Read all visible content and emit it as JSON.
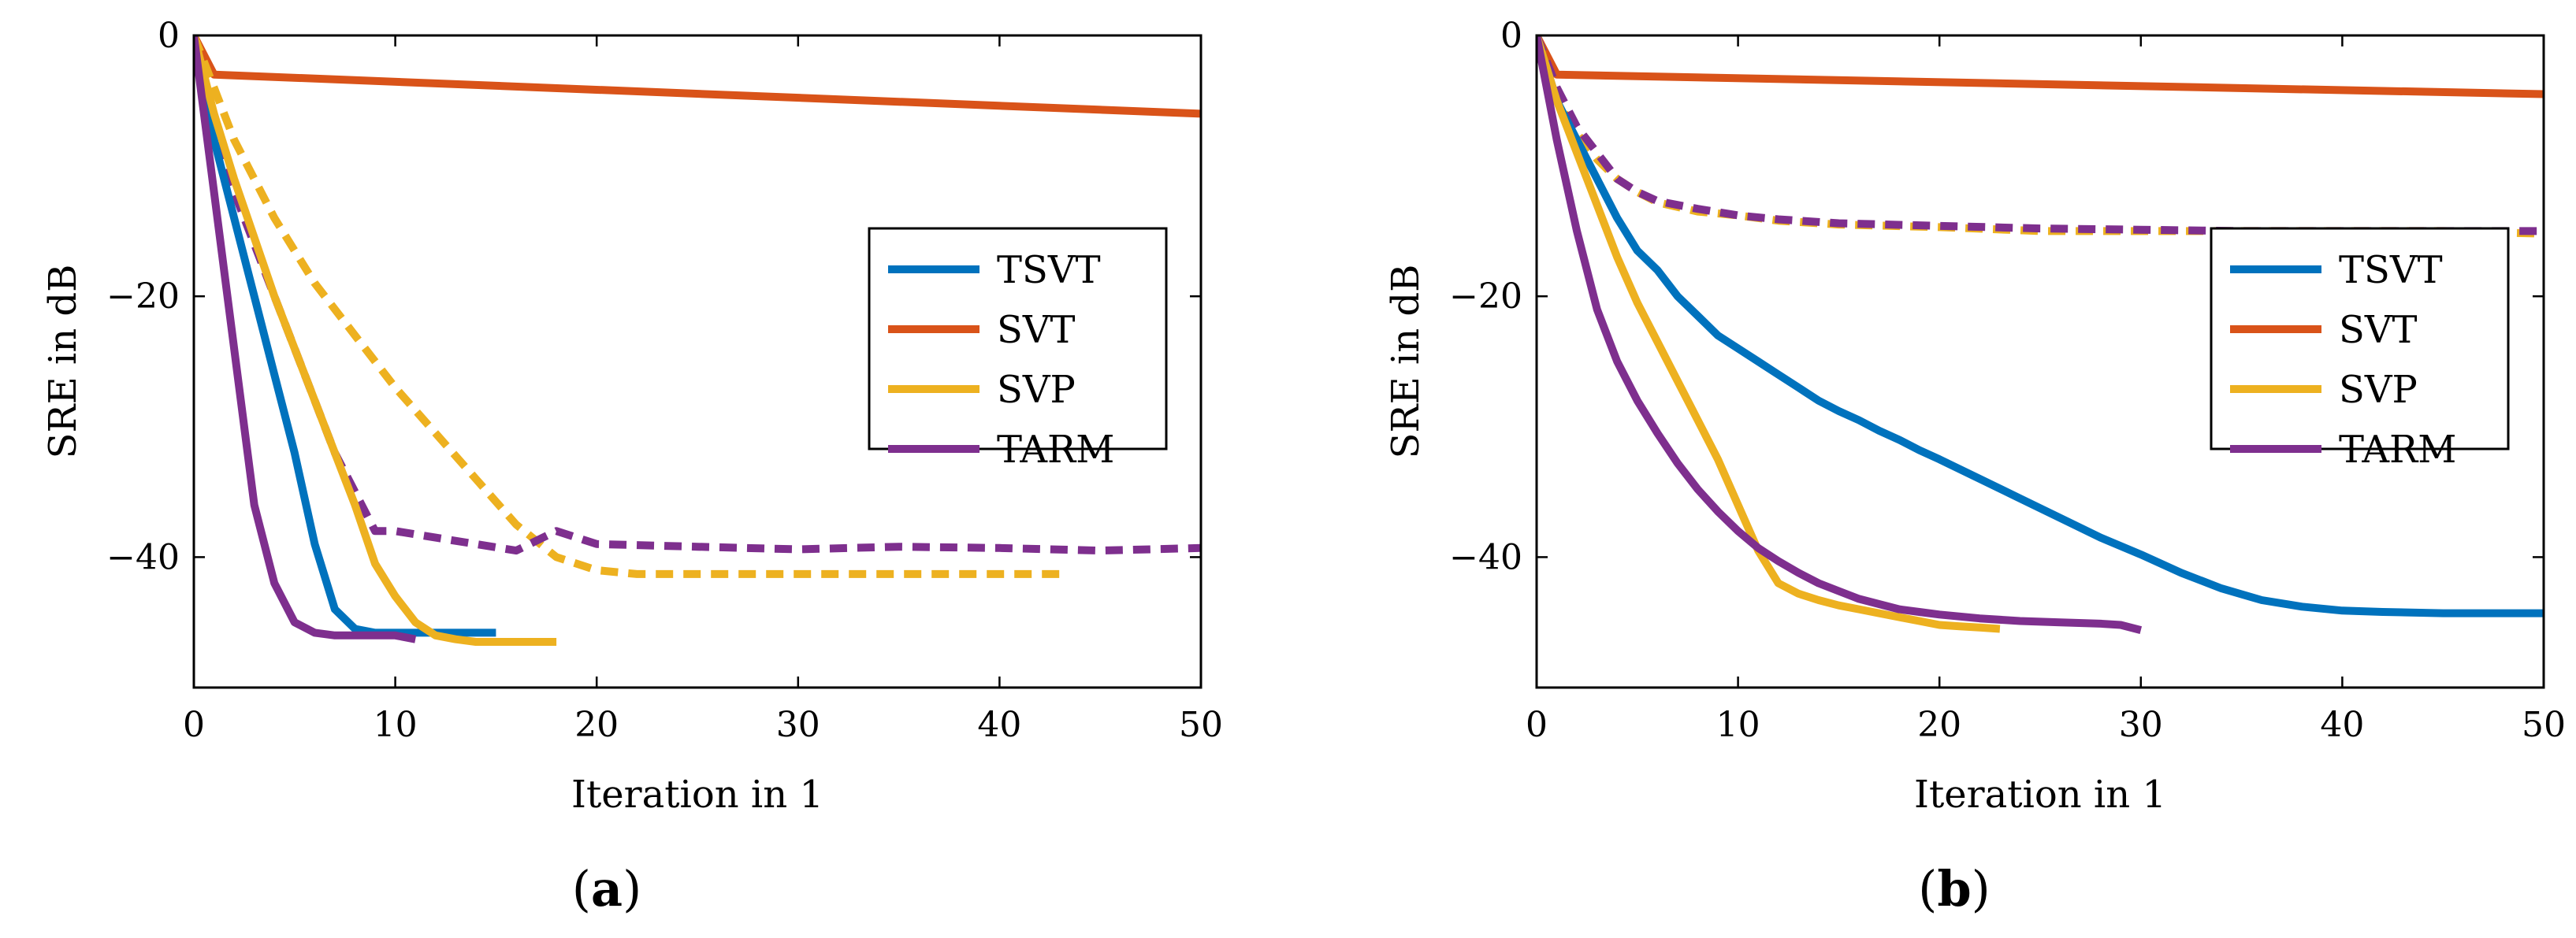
{
  "chart_data": [
    {
      "type": "line",
      "panel_label": "a",
      "xlabel": "Iteration in 1",
      "ylabel": "SRE in dB",
      "xlim": [
        0,
        50
      ],
      "ylim": [
        -50,
        0
      ],
      "xticks": [
        0,
        10,
        20,
        30,
        40,
        50
      ],
      "yticks": [
        0,
        -20,
        -40
      ],
      "xtick_labels": [
        "0",
        "10",
        "20",
        "30",
        "40",
        "50"
      ],
      "ytick_labels": [
        "0",
        "−20",
        "−40"
      ],
      "legend_position": "center-right",
      "legend": [
        {
          "name": "TSVT",
          "color": "#0072BD"
        },
        {
          "name": "SVT",
          "color": "#D95319"
        },
        {
          "name": "SVP",
          "color": "#EDB120"
        },
        {
          "name": "TARM",
          "color": "#7E2F8E"
        }
      ],
      "series": [
        {
          "name": "SVT",
          "color": "#D95319",
          "dashed": false,
          "x": [
            0,
            1,
            50
          ],
          "y": [
            0,
            -3,
            -6
          ]
        },
        {
          "name": "SVP",
          "color": "#EDB120",
          "dashed": true,
          "x": [
            0,
            2,
            4,
            6,
            8,
            10,
            12,
            14,
            16,
            18,
            20,
            22,
            25,
            30,
            35,
            40,
            43
          ],
          "y": [
            0,
            -8,
            -14,
            -19,
            -23,
            -27,
            -30.5,
            -34,
            -37.5,
            -40,
            -41,
            -41.3,
            -41.3,
            -41.3,
            -41.3,
            -41.3,
            -41.3
          ]
        },
        {
          "name": "TARM",
          "color": "#7E2F8E",
          "dashed": true,
          "x": [
            0,
            1,
            2,
            3,
            4,
            5,
            6,
            7,
            8,
            9,
            10,
            12,
            14,
            16,
            18,
            20,
            25,
            30,
            35,
            40,
            45,
            50
          ],
          "y": [
            0,
            -8,
            -12,
            -16,
            -20,
            -24,
            -28,
            -32,
            -35,
            -38,
            -38,
            -38.5,
            -39,
            -39.5,
            -38,
            -39,
            -39.2,
            -39.4,
            -39.2,
            -39.3,
            -39.5,
            -39.3
          ]
        },
        {
          "name": "TSVT",
          "color": "#0072BD",
          "dashed": false,
          "x": [
            0,
            1,
            2,
            3,
            4,
            5,
            6,
            7,
            8,
            9,
            10,
            11,
            12,
            13,
            14,
            15
          ],
          "y": [
            0,
            -8,
            -14,
            -20,
            -26,
            -32,
            -39,
            -44,
            -45.5,
            -45.8,
            -45.8,
            -45.8,
            -45.8,
            -45.8,
            -45.8,
            -45.8
          ]
        },
        {
          "name": "SVP",
          "color": "#EDB120",
          "dashed": false,
          "x": [
            0,
            1,
            2,
            3,
            4,
            5,
            6,
            7,
            8,
            9,
            10,
            11,
            12,
            13,
            14,
            15,
            16,
            17,
            18
          ],
          "y": [
            0,
            -6,
            -11,
            -15.5,
            -20,
            -24,
            -28,
            -32,
            -36,
            -40.5,
            -43,
            -45,
            -46,
            -46.3,
            -46.5,
            -46.5,
            -46.5,
            -46.5,
            -46.5
          ]
        },
        {
          "name": "TARM",
          "color": "#7E2F8E",
          "dashed": false,
          "x": [
            0,
            1,
            2,
            3,
            4,
            5,
            6,
            7,
            8,
            9,
            10,
            11
          ],
          "y": [
            0,
            -12,
            -24,
            -36,
            -42,
            -45,
            -45.8,
            -46,
            -46,
            -46,
            -46,
            -46.3
          ]
        }
      ]
    },
    {
      "type": "line",
      "panel_label": "b",
      "xlabel": "Iteration in 1",
      "ylabel": "SRE in dB",
      "xlim": [
        0,
        50
      ],
      "ylim": [
        -50,
        0
      ],
      "xticks": [
        0,
        10,
        20,
        30,
        40,
        50
      ],
      "yticks": [
        0,
        -20,
        -40
      ],
      "xtick_labels": [
        "0",
        "10",
        "20",
        "30",
        "40",
        "50"
      ],
      "ytick_labels": [
        "0",
        "−20",
        "−40"
      ],
      "legend_position": "center-right",
      "legend": [
        {
          "name": "TSVT",
          "color": "#0072BD"
        },
        {
          "name": "SVT",
          "color": "#D95319"
        },
        {
          "name": "SVP",
          "color": "#EDB120"
        },
        {
          "name": "TARM",
          "color": "#7E2F8E"
        }
      ],
      "series": [
        {
          "name": "SVT",
          "color": "#D95319",
          "dashed": false,
          "x": [
            0,
            1,
            50
          ],
          "y": [
            0,
            -3,
            -4.5
          ]
        },
        {
          "name": "SVP",
          "color": "#EDB120",
          "dashed": true,
          "x": [
            0,
            1,
            2,
            3,
            4,
            5,
            6,
            8,
            10,
            12,
            15,
            20,
            25,
            30,
            35,
            40,
            45,
            50
          ],
          "y": [
            0,
            -5,
            -7.5,
            -9.5,
            -11,
            -12,
            -12.8,
            -13.5,
            -13.8,
            -14.2,
            -14.5,
            -14.7,
            -15,
            -15,
            -15,
            -15,
            -15,
            -15.2
          ]
        },
        {
          "name": "TARM",
          "color": "#7E2F8E",
          "dashed": true,
          "x": [
            0,
            1,
            2,
            3,
            4,
            5,
            6,
            8,
            10,
            12,
            15,
            20,
            25,
            30,
            35,
            40,
            45,
            50
          ],
          "y": [
            0,
            -4,
            -7,
            -9,
            -11,
            -12,
            -12.7,
            -13.3,
            -13.8,
            -14.1,
            -14.4,
            -14.6,
            -14.8,
            -14.9,
            -15,
            -15,
            -15,
            -15
          ]
        },
        {
          "name": "TSVT",
          "color": "#0072BD",
          "dashed": false,
          "x": [
            0,
            1,
            2,
            3,
            4,
            5,
            6,
            7,
            8,
            9,
            10,
            11,
            12,
            13,
            14,
            15,
            16,
            17,
            18,
            19,
            20,
            22,
            24,
            26,
            28,
            30,
            32,
            34,
            36,
            38,
            40,
            42,
            45,
            50
          ],
          "y": [
            0,
            -5,
            -8,
            -11,
            -14,
            -16.5,
            -18,
            -20,
            -21.5,
            -23,
            -24,
            -25,
            -26,
            -27,
            -28,
            -28.8,
            -29.5,
            -30.3,
            -31,
            -31.8,
            -32.5,
            -34,
            -35.5,
            -37,
            -38.5,
            -39.8,
            -41.2,
            -42.4,
            -43.3,
            -43.8,
            -44.1,
            -44.2,
            -44.3,
            -44.3
          ]
        },
        {
          "name": "SVP",
          "color": "#EDB120",
          "dashed": false,
          "x": [
            0,
            1,
            2,
            3,
            4,
            5,
            6,
            7,
            8,
            9,
            10,
            11,
            12,
            13,
            14,
            15,
            16,
            17,
            18,
            19,
            20,
            21,
            22,
            23
          ],
          "y": [
            0,
            -5,
            -9,
            -13,
            -17,
            -20.5,
            -23.5,
            -26.5,
            -29.5,
            -32.5,
            -36,
            -39.5,
            -42,
            -42.8,
            -43.3,
            -43.7,
            -44,
            -44.3,
            -44.6,
            -44.9,
            -45.2,
            -45.3,
            -45.4,
            -45.5
          ]
        },
        {
          "name": "TARM",
          "color": "#7E2F8E",
          "dashed": false,
          "x": [
            0,
            1,
            2,
            3,
            4,
            5,
            6,
            7,
            8,
            9,
            10,
            11,
            12,
            13,
            14,
            15,
            16,
            17,
            18,
            19,
            20,
            22,
            24,
            26,
            28,
            29,
            30
          ],
          "y": [
            0,
            -8,
            -15,
            -21,
            -25,
            -28,
            -30.5,
            -32.8,
            -34.8,
            -36.5,
            -38,
            -39.3,
            -40.3,
            -41.2,
            -42,
            -42.6,
            -43.2,
            -43.6,
            -44,
            -44.2,
            -44.4,
            -44.7,
            -44.9,
            -45,
            -45.1,
            -45.2,
            -45.6
          ]
        }
      ]
    }
  ]
}
